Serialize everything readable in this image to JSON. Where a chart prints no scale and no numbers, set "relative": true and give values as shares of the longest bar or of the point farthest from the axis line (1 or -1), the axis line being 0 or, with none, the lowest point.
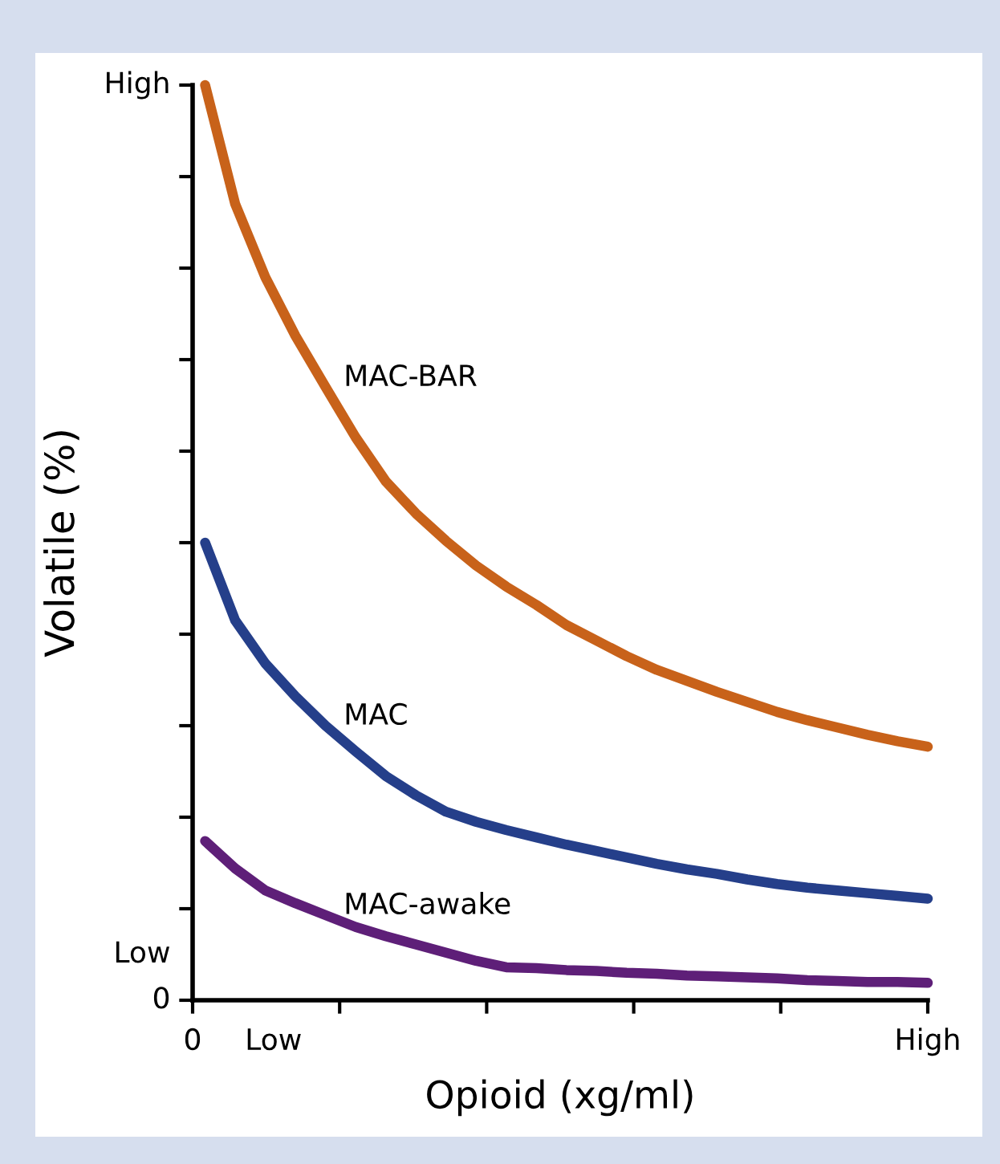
{
  "chart_data": {
    "type": "line",
    "xlabel": "Opioid (xg/ml)",
    "ylabel": "Volatile (%)",
    "relative": true,
    "annotations": [
      "High",
      "Low",
      "0",
      "0",
      "Low",
      "High"
    ],
    "grid": false,
    "legend": false,
    "line_style": "solid",
    "categories": [
      null,
      null,
      null,
      null,
      null,
      null,
      null,
      null,
      null,
      null,
      null,
      null,
      null,
      null,
      null,
      null,
      null,
      null,
      null,
      null,
      null,
      null,
      null,
      null,
      null
    ],
    "series": [
      {
        "name": "MAC-BAR",
        "color": "#c8621a",
        "values": [
          1.0,
          0.87,
          0.79,
          0.726,
          0.67,
          0.615,
          0.567,
          0.532,
          0.502,
          0.475,
          0.452,
          0.432,
          0.41,
          0.393,
          0.376,
          0.361,
          0.349,
          0.337,
          0.326,
          0.315,
          0.306,
          0.298,
          0.29,
          0.283,
          0.277
        ]
      },
      {
        "name": "MAC",
        "color": "#253f8a",
        "values": [
          0.5,
          0.415,
          0.368,
          0.332,
          0.3,
          0.272,
          0.245,
          0.224,
          0.206,
          0.195,
          0.186,
          0.178,
          0.17,
          0.163,
          0.156,
          0.149,
          0.143,
          0.138,
          0.132,
          0.127,
          0.123,
          0.12,
          0.117,
          0.114,
          0.111
        ]
      },
      {
        "name": "MAC-awake",
        "color": "#5e1f78",
        "values": [
          0.174,
          0.144,
          0.12,
          0.106,
          0.093,
          0.08,
          0.07,
          0.061,
          0.052,
          0.043,
          0.036,
          0.035,
          0.033,
          0.032,
          0.03,
          0.029,
          0.027,
          0.026,
          0.025,
          0.024,
          0.022,
          0.021,
          0.02,
          0.02,
          0.019
        ]
      }
    ]
  }
}
